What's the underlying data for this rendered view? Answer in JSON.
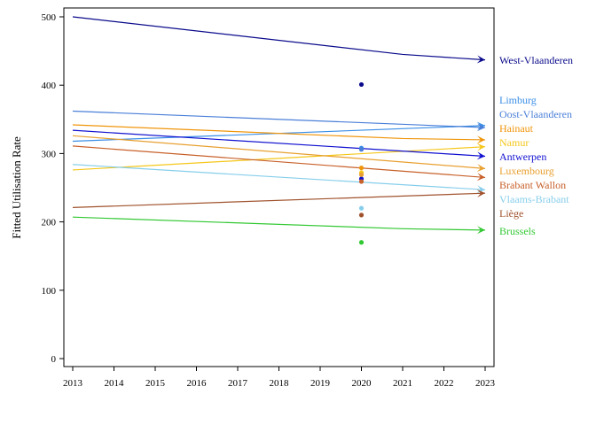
{
  "chart_data": {
    "type": "line",
    "title": "",
    "xlabel": "",
    "ylabel": "Fitted Utilisation Rate",
    "xlim": [
      2013,
      2023
    ],
    "ylim": [
      0,
      500
    ],
    "x_ticks": [
      "2013",
      "2014",
      "2015",
      "2016",
      "2017",
      "2018",
      "2019",
      "2020",
      "2021",
      "2022",
      "2023"
    ],
    "y_ticks": [
      "0",
      "100",
      "200",
      "300",
      "400",
      "500"
    ],
    "grid": false,
    "legend": "end-of-line labels",
    "series": [
      {
        "name": "West-Vlaanderen",
        "color": "#0a0a8c",
        "x": [
          2013,
          2021,
          2023
        ],
        "y": [
          500,
          445,
          437
        ],
        "point": [
          2020,
          401
        ]
      },
      {
        "name": "Limburg",
        "color": "#3a8ee6",
        "x": [
          2013,
          2023
        ],
        "y": [
          318,
          341
        ],
        "point": [
          2020,
          308
        ]
      },
      {
        "name": "Oost-Vlaanderen",
        "color": "#4a7fd8",
        "x": [
          2013,
          2023
        ],
        "y": [
          362,
          338
        ],
        "point": [
          2020,
          306
        ]
      },
      {
        "name": "Hainaut",
        "color": "#f0950a",
        "x": [
          2013,
          2021,
          2023
        ],
        "y": [
          342,
          322,
          320
        ],
        "point": [
          2020,
          279
        ]
      },
      {
        "name": "Namur",
        "color": "#f5c71a",
        "x": [
          2013,
          2023
        ],
        "y": [
          276,
          310
        ],
        "point": [
          2020,
          272
        ]
      },
      {
        "name": "Antwerpen",
        "color": "#1010d0",
        "x": [
          2013,
          2023
        ],
        "y": [
          334,
          296
        ],
        "point": [
          2020,
          263
        ]
      },
      {
        "name": "Luxembourg",
        "color": "#e8a030",
        "x": [
          2013,
          2023
        ],
        "y": [
          326,
          278
        ],
        "point": [
          2020,
          269
        ]
      },
      {
        "name": "Brabant Wallon",
        "color": "#c8602a",
        "x": [
          2013,
          2023
        ],
        "y": [
          311,
          265
        ],
        "point": [
          2020,
          259
        ]
      },
      {
        "name": "Vlaams-Brabant",
        "color": "#87ceeb",
        "x": [
          2013,
          2023
        ],
        "y": [
          284,
          247
        ],
        "point": [
          2020,
          220
        ]
      },
      {
        "name": "Liège",
        "color": "#a0522d",
        "x": [
          2013,
          2023
        ],
        "y": [
          221,
          242
        ],
        "point": [
          2020,
          210
        ]
      },
      {
        "name": "Brussels",
        "color": "#32c832",
        "x": [
          2013,
          2021,
          2023
        ],
        "y": [
          207,
          190,
          188
        ],
        "point": [
          2020,
          170
        ]
      }
    ]
  }
}
